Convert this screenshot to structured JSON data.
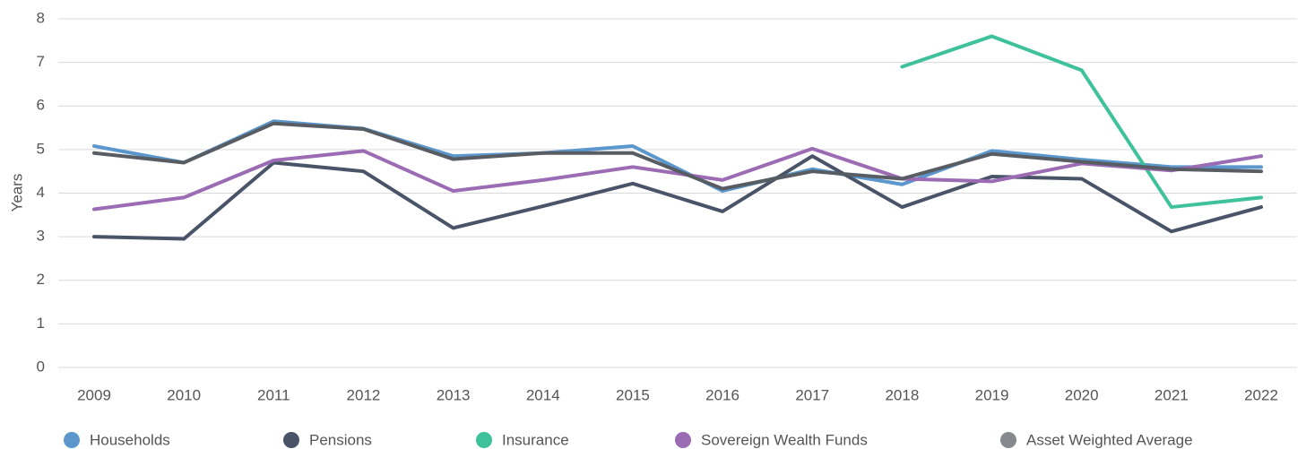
{
  "chart_data": {
    "type": "line",
    "y_label": "Years",
    "x": [
      "2009",
      "2010",
      "2011",
      "2012",
      "2013",
      "2014",
      "2015",
      "2016",
      "2017",
      "2018",
      "2019",
      "2020",
      "2021",
      "2022"
    ],
    "ylim": [
      0,
      8
    ],
    "yticks": [
      0,
      1,
      2,
      3,
      4,
      5,
      6,
      7,
      8
    ],
    "grid": true,
    "legend": "bottom",
    "series": [
      {
        "name": "Households",
        "color": "#5b97cc",
        "values": [
          5.08,
          4.7,
          5.65,
          5.48,
          4.85,
          4.92,
          5.08,
          4.05,
          4.55,
          4.2,
          4.97,
          4.77,
          4.6,
          4.6
        ]
      },
      {
        "name": "Pensions",
        "color": "#4a5468",
        "values": [
          3.0,
          2.95,
          4.7,
          4.5,
          3.2,
          3.7,
          4.22,
          3.58,
          4.85,
          3.68,
          4.38,
          4.33,
          3.12,
          3.68
        ]
      },
      {
        "name": "Insurance",
        "color": "#3fc29b",
        "values": [
          null,
          null,
          null,
          null,
          null,
          null,
          null,
          null,
          null,
          6.9,
          7.6,
          6.82,
          3.68,
          3.9
        ]
      },
      {
        "name": "Sovereign Wealth Funds",
        "color": "#9b6bb3",
        "values": [
          3.63,
          3.9,
          4.75,
          4.97,
          4.05,
          4.3,
          4.6,
          4.3,
          5.02,
          4.33,
          4.27,
          4.68,
          4.52,
          4.85
        ]
      },
      {
        "name": "Asset Weighted Average",
        "color": "#585c63",
        "legend_color": "#86898e",
        "values": [
          4.92,
          4.7,
          5.6,
          5.47,
          4.78,
          4.92,
          4.92,
          4.1,
          4.5,
          4.33,
          4.9,
          4.72,
          4.55,
          4.5
        ]
      }
    ]
  }
}
